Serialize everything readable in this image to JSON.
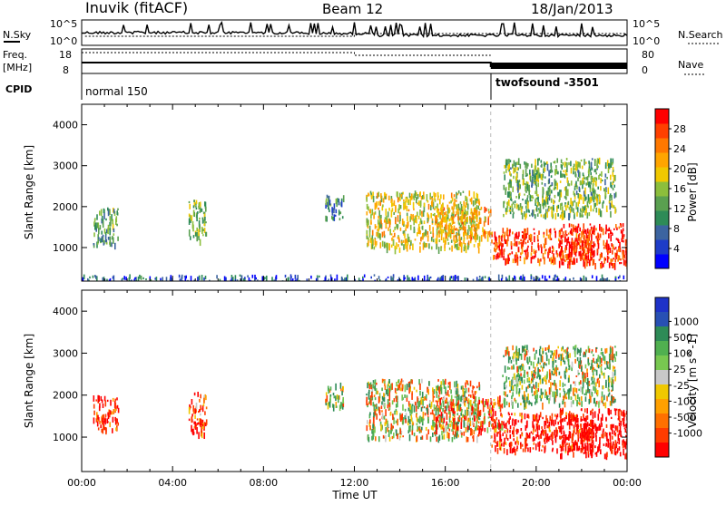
{
  "header": {
    "station": "Inuvik (fitACF)",
    "beam": "Beam 12",
    "date": "18/Jan/2013"
  },
  "strip": {
    "nsky_label": "N.Sky",
    "nsky_ticks": [
      "10^5",
      "10^0"
    ],
    "nsearch_label": "N.Search",
    "nsearch_ticks": [
      "10^5",
      "10^0"
    ],
    "freq_label_1": "Freq.",
    "freq_label_2": "[MHz]",
    "freq_ticks": [
      "18",
      "8"
    ],
    "nave_label": "Nave",
    "nave_ticks": [
      "80",
      "0"
    ],
    "cpid_label": "CPID",
    "cpid_segments": [
      {
        "name": "normal 150",
        "start_h": 0
      },
      {
        "name": "twofsound -3501",
        "start_h": 18
      }
    ]
  },
  "chart_data": [
    {
      "type": "heatmap",
      "quantity": "Power",
      "ylabel": "Slant Range [km]",
      "ylim": [
        180,
        4500
      ],
      "yticks": [
        1000,
        2000,
        3000,
        4000
      ],
      "xlim": [
        0,
        24
      ],
      "colorbar": {
        "label": "Power [dB]",
        "range": [
          0,
          32
        ],
        "ticks": [
          "4",
          "8",
          "12",
          "16",
          "20",
          "24",
          "28"
        ],
        "colors": [
          "#0000ff",
          "#1e3cc8",
          "#3c64a0",
          "#2e8b57",
          "#5aa050",
          "#8cbe3c",
          "#f0c800",
          "#ffa500",
          "#ff7800",
          "#ff4000",
          "#ff0000"
        ]
      },
      "echo_regions": [
        {
          "t": [
            0.5,
            1.6
          ],
          "r": [
            1100,
            2000
          ],
          "value": 12
        },
        {
          "t": [
            4.7,
            5.5
          ],
          "r": [
            1200,
            2200
          ],
          "value": 14
        },
        {
          "t": [
            10.7,
            11.5
          ],
          "r": [
            1700,
            2300
          ],
          "value": 10
        },
        {
          "t": [
            12.5,
            17.5
          ],
          "r": [
            1000,
            2400
          ],
          "value": 18
        },
        {
          "t": [
            15.5,
            18.0
          ],
          "r": [
            1300,
            2000
          ],
          "value": 22
        },
        {
          "t": [
            18.0,
            22.5
          ],
          "r": [
            700,
            1500
          ],
          "value": 28
        },
        {
          "t": [
            18.5,
            23.5
          ],
          "r": [
            1800,
            3200
          ],
          "value": 14
        },
        {
          "t": [
            21.0,
            24.0
          ],
          "r": [
            600,
            1600
          ],
          "value": 30
        },
        {
          "t": [
            0,
            24
          ],
          "r": [
            180,
            350
          ],
          "value": 6
        }
      ]
    },
    {
      "type": "heatmap",
      "quantity": "Velocity",
      "ylabel": "Slant Range [km]",
      "xlabel": "Time UT",
      "ylim": [
        180,
        4500
      ],
      "yticks": [
        1000,
        2000,
        3000,
        4000
      ],
      "xlim": [
        0,
        24
      ],
      "xticks": [
        "00:00",
        "04:00",
        "08:00",
        "12:00",
        "16:00",
        "20:00",
        "00:00"
      ],
      "colorbar": {
        "label": "Velocity [m s^-1]",
        "ticks": [
          "1000",
          "500",
          "100",
          "25",
          "-25",
          "-100",
          "-500",
          "-1000"
        ],
        "colors": [
          "#1e32c8",
          "#2850b4",
          "#2e8b57",
          "#50b050",
          "#78c850",
          "#c8c8c8",
          "#f0c800",
          "#ffa000",
          "#ff7000",
          "#ff3c00",
          "#ff0000"
        ]
      },
      "echo_regions": [
        {
          "t": [
            0.5,
            1.6
          ],
          "r": [
            1200,
            2000
          ],
          "value": -300
        },
        {
          "t": [
            4.7,
            5.5
          ],
          "r": [
            1100,
            2100
          ],
          "value": -250
        },
        {
          "t": [
            10.7,
            11.5
          ],
          "r": [
            1700,
            2300
          ],
          "value": 150
        },
        {
          "t": [
            12.5,
            17.5
          ],
          "r": [
            1000,
            2400
          ],
          "value": 50
        },
        {
          "t": [
            15.5,
            18.5
          ],
          "r": [
            1200,
            2000
          ],
          "value": -150
        },
        {
          "t": [
            18.0,
            22.5
          ],
          "r": [
            700,
            1600
          ],
          "value": -300
        },
        {
          "t": [
            18.5,
            23.5
          ],
          "r": [
            1800,
            3200
          ],
          "value": 150
        },
        {
          "t": [
            21.0,
            24.0
          ],
          "r": [
            600,
            1700
          ],
          "value": -400
        }
      ]
    }
  ]
}
